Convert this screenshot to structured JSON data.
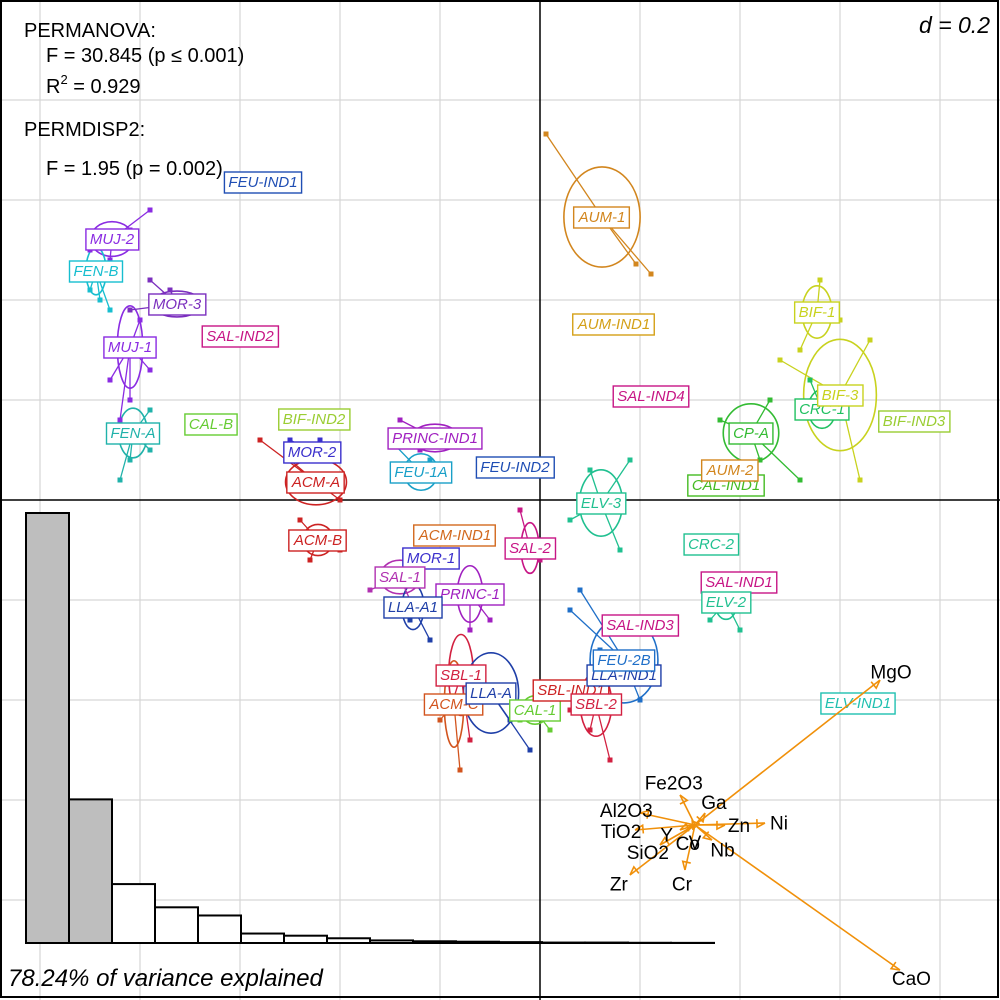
{
  "chart_data": {
    "type": "scatter",
    "title": "",
    "xlabel": "",
    "ylabel": "",
    "xlim": [
      -0.54,
      0.46
    ],
    "ylim": [
      -0.5,
      0.5
    ],
    "grid": true,
    "scale_label": "d = 0.2",
    "variance_label": "78.24% of variance explained",
    "stats": {
      "permanova_title": "PERMANOVA:",
      "permanova_f": "F = 30.845 (p ≤ 0.001)",
      "permanova_r2_prefix": "R",
      "permanova_r2_sup": "2",
      "permanova_r2_value": " = 0.929",
      "permdisp_title": "PERMDISP2:",
      "permdisp_f": "F = 1.95 (p = 0.002)"
    },
    "eigenvalues": [
      1.0,
      0.334,
      0.137,
      0.083,
      0.064,
      0.022,
      0.017,
      0.011,
      0.006,
      0.004,
      0.003,
      0.002,
      0.001,
      0.001,
      0.0005,
      0.0003
    ],
    "groups": [
      {
        "label": "FEU-IND1",
        "x": -0.277,
        "y": 0.318,
        "color": "#1f4eb4",
        "points": []
      },
      {
        "label": "MUJ-2",
        "x": -0.428,
        "y": 0.261,
        "color": "#8a2be2",
        "points": [
          [
            -0.39,
            0.29
          ],
          [
            -0.41,
            0.27
          ],
          [
            -0.45,
            0.25
          ],
          [
            -0.43,
            0.24
          ]
        ]
      },
      {
        "label": "FEN-B",
        "x": -0.444,
        "y": 0.229,
        "color": "#17becf",
        "points": [
          [
            -0.45,
            0.21
          ],
          [
            -0.44,
            0.2
          ],
          [
            -0.43,
            0.19
          ],
          [
            -0.46,
            0.22
          ]
        ]
      },
      {
        "label": "MOR-3",
        "x": -0.363,
        "y": 0.196,
        "color": "#7b2fbe",
        "points": [
          [
            -0.39,
            0.22
          ],
          [
            -0.37,
            0.21
          ],
          [
            -0.35,
            0.2
          ],
          [
            -0.41,
            0.19
          ]
        ]
      },
      {
        "label": "SAL-IND2",
        "x": -0.3,
        "y": 0.164,
        "color": "#c71585",
        "points": []
      },
      {
        "label": "MUJ-1",
        "x": -0.41,
        "y": 0.153,
        "color": "#8a2be2",
        "points": [
          [
            -0.43,
            0.12
          ],
          [
            -0.41,
            0.1
          ],
          [
            -0.42,
            0.08
          ],
          [
            -0.39,
            0.13
          ],
          [
            -0.4,
            0.18
          ]
        ]
      },
      {
        "label": "FEN-A",
        "x": -0.407,
        "y": 0.067,
        "color": "#20b2aa",
        "points": [
          [
            -0.41,
            0.04
          ],
          [
            -0.39,
            0.05
          ],
          [
            -0.43,
            0.06
          ],
          [
            -0.42,
            0.02
          ],
          [
            -0.39,
            0.09
          ]
        ]
      },
      {
        "label": "CAL-B",
        "x": -0.329,
        "y": 0.076,
        "color": "#66cc33",
        "points": []
      },
      {
        "label": "BIF-IND2",
        "x": -0.226,
        "y": 0.081,
        "color": "#9acd32",
        "points": []
      },
      {
        "label": "MOR-2",
        "x": -0.228,
        "y": 0.048,
        "color": "#3a2fcc",
        "points": [
          [
            -0.25,
            0.06
          ],
          [
            -0.22,
            0.06
          ],
          [
            -0.21,
            0.04
          ]
        ]
      },
      {
        "label": "ACM-A",
        "x": -0.224,
        "y": 0.018,
        "color": "#cc2222",
        "points": [
          [
            -0.28,
            0.06
          ],
          [
            -0.25,
            0.04
          ],
          [
            -0.21,
            0.02
          ],
          [
            -0.2,
            0.0
          ]
        ]
      },
      {
        "label": "ACM-B",
        "x": -0.222,
        "y": -0.04,
        "color": "#cc2222",
        "points": [
          [
            -0.24,
            -0.02
          ],
          [
            -0.23,
            -0.06
          ],
          [
            -0.2,
            -0.05
          ]
        ]
      },
      {
        "label": "ACM-IND1",
        "x": -0.085,
        "y": -0.035,
        "color": "#d2691e",
        "points": []
      },
      {
        "label": "PRINC-IND1",
        "x": -0.105,
        "y": 0.062,
        "color": "#a020c0",
        "points": [
          [
            -0.14,
            0.08
          ],
          [
            -0.12,
            0.05
          ]
        ]
      },
      {
        "label": "FEU-1A",
        "x": -0.119,
        "y": 0.028,
        "color": "#1aa0c8",
        "points": [
          [
            -0.15,
            0.06
          ],
          [
            -0.11,
            0.04
          ],
          [
            -0.12,
            0.02
          ]
        ]
      },
      {
        "label": "FEU-IND2",
        "x": -0.025,
        "y": 0.033,
        "color": "#1f4eb4",
        "points": []
      },
      {
        "label": "MOR-1",
        "x": -0.109,
        "y": -0.058,
        "color": "#3a2fcc",
        "points": []
      },
      {
        "label": "SAL-1",
        "x": -0.14,
        "y": -0.077,
        "color": "#b030b0",
        "points": [
          [
            -0.17,
            -0.09
          ],
          [
            -0.13,
            -0.1
          ]
        ]
      },
      {
        "label": "PRINC-1",
        "x": -0.07,
        "y": -0.094,
        "color": "#a020c0",
        "points": [
          [
            -0.05,
            -0.12
          ],
          [
            -0.07,
            -0.13
          ]
        ]
      },
      {
        "label": "LLA-A1",
        "x": -0.127,
        "y": -0.107,
        "color": "#1f3fa8",
        "points": [
          [
            -0.13,
            -0.12
          ],
          [
            -0.11,
            -0.14
          ]
        ]
      },
      {
        "label": "SAL-2",
        "x": -0.01,
        "y": -0.048,
        "color": "#c71585",
        "points": [
          [
            -0.02,
            -0.01
          ],
          [
            -0.0,
            -0.06
          ]
        ]
      },
      {
        "label": "SBL-1",
        "x": -0.079,
        "y": -0.175,
        "color": "#d22040",
        "points": [
          [
            -0.09,
            -0.21
          ],
          [
            -0.07,
            -0.24
          ],
          [
            -0.06,
            -0.2
          ]
        ]
      },
      {
        "label": "ACM-C",
        "x": -0.086,
        "y": -0.204,
        "color": "#d2541e",
        "points": [
          [
            -0.08,
            -0.27
          ],
          [
            -0.1,
            -0.22
          ]
        ]
      },
      {
        "label": "LLA-A",
        "x": -0.049,
        "y": -0.193,
        "color": "#1f3fa8",
        "points": [
          [
            -0.03,
            -0.22
          ],
          [
            -0.01,
            -0.25
          ]
        ]
      },
      {
        "label": "CAL-1",
        "x": -0.005,
        "y": -0.21,
        "color": "#66cc33",
        "points": [
          [
            -0.02,
            -0.22
          ],
          [
            0.01,
            -0.23
          ]
        ]
      },
      {
        "label": "SBL-IND1",
        "x": 0.031,
        "y": -0.19,
        "color": "#cc2222",
        "points": []
      },
      {
        "label": "SBL-2",
        "x": 0.056,
        "y": -0.204,
        "color": "#d22040",
        "points": [
          [
            0.05,
            -0.23
          ],
          [
            0.07,
            -0.26
          ],
          [
            0.03,
            -0.21
          ]
        ]
      },
      {
        "label": "LLA-IND1",
        "x": 0.084,
        "y": -0.175,
        "color": "#1f3fa8",
        "points": []
      },
      {
        "label": "FEU-2B",
        "x": 0.084,
        "y": -0.16,
        "color": "#1f6fc8",
        "points": [
          [
            0.04,
            -0.09
          ],
          [
            0.06,
            -0.15
          ],
          [
            0.1,
            -0.2
          ],
          [
            0.03,
            -0.11
          ]
        ]
      },
      {
        "label": "SAL-IND3",
        "x": 0.1,
        "y": -0.125,
        "color": "#c71585",
        "points": []
      },
      {
        "label": "AUM-1",
        "x": 0.062,
        "y": 0.283,
        "color": "#d2861e",
        "points": [
          [
            0.006,
            0.366
          ],
          [
            0.111,
            0.226
          ],
          [
            0.096,
            0.236
          ],
          [
            0.04,
            0.29
          ]
        ]
      },
      {
        "label": "AUM-IND1",
        "x": 0.074,
        "y": 0.176,
        "color": "#d4a017",
        "points": []
      },
      {
        "label": "SAL-IND4",
        "x": 0.111,
        "y": 0.104,
        "color": "#c71585",
        "points": []
      },
      {
        "label": "ELV-3",
        "x": 0.061,
        "y": -0.003,
        "color": "#20c090",
        "points": [
          [
            0.05,
            0.03
          ],
          [
            0.09,
            0.04
          ],
          [
            0.08,
            -0.05
          ],
          [
            0.03,
            -0.02
          ]
        ]
      },
      {
        "label": "CRC-2",
        "x": 0.171,
        "y": -0.044,
        "color": "#20c090",
        "points": []
      },
      {
        "label": "SAL-IND1",
        "x": 0.199,
        "y": -0.082,
        "color": "#c71585",
        "points": []
      },
      {
        "label": "ELV-2",
        "x": 0.186,
        "y": -0.102,
        "color": "#20c090",
        "points": [
          [
            0.17,
            -0.12
          ],
          [
            0.2,
            -0.13
          ],
          [
            0.19,
            -0.1
          ]
        ]
      },
      {
        "label": "CP-A",
        "x": 0.211,
        "y": 0.067,
        "color": "#33bb33",
        "points": [
          [
            0.18,
            0.08
          ],
          [
            0.23,
            0.1
          ],
          [
            0.26,
            0.02
          ],
          [
            0.22,
            0.04
          ]
        ]
      },
      {
        "label": "CAL-IND1",
        "x": 0.186,
        "y": 0.015,
        "color": "#44bb22",
        "points": []
      },
      {
        "label": "AUM-2",
        "x": 0.19,
        "y": 0.03,
        "color": "#d2861e",
        "points": []
      },
      {
        "label": "BIF-1",
        "x": 0.277,
        "y": 0.188,
        "color": "#c8d21e",
        "points": [
          [
            0.28,
            0.22
          ],
          [
            0.26,
            0.15
          ],
          [
            0.3,
            0.18
          ]
        ]
      },
      {
        "label": "CRC-1",
        "x": 0.282,
        "y": 0.091,
        "color": "#20c060",
        "points": [
          [
            0.27,
            0.12
          ],
          [
            0.3,
            0.1
          ]
        ]
      },
      {
        "label": "BIF-3",
        "x": 0.3,
        "y": 0.105,
        "color": "#c8d21e",
        "points": [
          [
            0.33,
            0.16
          ],
          [
            0.32,
            0.02
          ],
          [
            0.24,
            0.14
          ]
        ]
      },
      {
        "label": "BIF-IND3",
        "x": 0.374,
        "y": 0.079,
        "color": "#9acd32",
        "points": []
      },
      {
        "label": "ELV-IND1",
        "x": 0.318,
        "y": -0.203,
        "color": "#20c0b0",
        "points": []
      }
    ],
    "variables": [
      {
        "name": "MgO",
        "x": 0.34,
        "y": -0.18
      },
      {
        "name": "CaO",
        "x": 0.36,
        "y": -0.47
      },
      {
        "name": "Ni",
        "x": 0.225,
        "y": -0.323
      },
      {
        "name": "Fe2O3",
        "x": 0.14,
        "y": -0.295
      },
      {
        "name": "Al2O3",
        "x": 0.1,
        "y": -0.313
      },
      {
        "name": "Ga",
        "x": 0.165,
        "y": -0.313
      },
      {
        "name": "Zn",
        "x": 0.185,
        "y": -0.325
      },
      {
        "name": "Y",
        "x": 0.14,
        "y": -0.33
      },
      {
        "name": "V",
        "x": 0.155,
        "y": -0.328
      },
      {
        "name": "Co",
        "x": 0.153,
        "y": -0.33
      },
      {
        "name": "TiO2",
        "x": 0.095,
        "y": -0.33
      },
      {
        "name": "Nb",
        "x": 0.172,
        "y": -0.34
      },
      {
        "name": "SiO2",
        "x": 0.12,
        "y": -0.345
      },
      {
        "name": "Zr",
        "x": 0.09,
        "y": -0.375
      },
      {
        "name": "Cr",
        "x": 0.145,
        "y": -0.37
      }
    ],
    "variable_origin": [
      0.155,
      -0.325
    ],
    "arrow_color": "#f0900a"
  }
}
